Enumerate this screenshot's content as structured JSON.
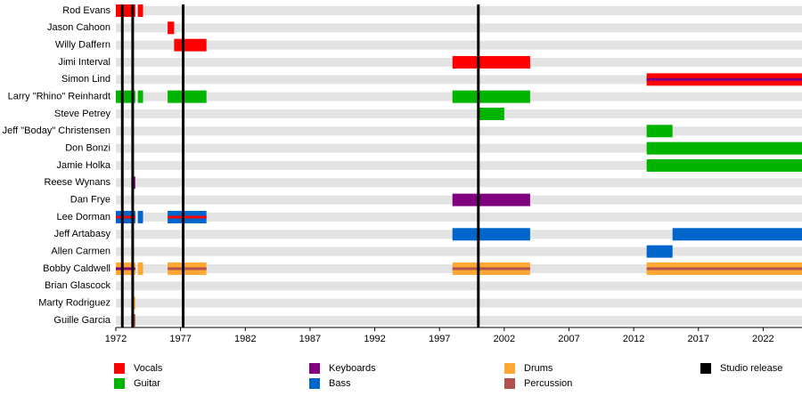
{
  "chart_data": {
    "type": "timeline",
    "categories": [
      "Rod Evans",
      "Jason Cahoon",
      "Willy Daffern",
      "Jimi Interval",
      "Simon Lind",
      "Larry \"Rhino\" Reinhardt",
      "Steve Petrey",
      "Jeff \"Boday\" Christensen",
      "Don Bonzi",
      "Jamie Holka",
      "Reese Wynans",
      "Dan Frye",
      "Lee Dorman",
      "Jeff Artabasy",
      "Allen Carmen",
      "Bobby Caldwell",
      "Brian Glascock",
      "Marty Rodriguez",
      "Guille Garcia"
    ],
    "xlim": [
      1972,
      2025
    ],
    "xticks": [
      1972,
      1977,
      1982,
      1987,
      1992,
      1997,
      2002,
      2007,
      2012,
      2017,
      2022
    ],
    "series": [
      {
        "name": "Vocals",
        "color": "#ff0000",
        "bars": [
          {
            "row": 0,
            "start": 1972,
            "end": 1973.5
          },
          {
            "row": 0,
            "start": 1973.7,
            "end": 1974.1
          },
          {
            "row": 1,
            "start": 1976,
            "end": 1976.5
          },
          {
            "row": 2,
            "start": 1976.5,
            "end": 1979
          },
          {
            "row": 3,
            "start": 1998,
            "end": 2004
          },
          {
            "row": 4,
            "start": 2013,
            "end": 2025
          }
        ],
        "stripes": [
          {
            "row": 12,
            "start": 1972,
            "end": 1973.5
          },
          {
            "row": 12,
            "start": 1976,
            "end": 1979
          }
        ]
      },
      {
        "name": "Guitar",
        "color": "#00b400",
        "bars": [
          {
            "row": 5,
            "start": 1972,
            "end": 1973.5
          },
          {
            "row": 5,
            "start": 1973.7,
            "end": 1974.1
          },
          {
            "row": 5,
            "start": 1976,
            "end": 1979
          },
          {
            "row": 5,
            "start": 1998,
            "end": 2004
          },
          {
            "row": 6,
            "start": 2000,
            "end": 2002
          },
          {
            "row": 7,
            "start": 2013,
            "end": 2015
          },
          {
            "row": 8,
            "start": 2013,
            "end": 2025
          },
          {
            "row": 9,
            "start": 2013,
            "end": 2025
          }
        ],
        "stripes": []
      },
      {
        "name": "Keyboards",
        "color": "#800080",
        "bars": [
          {
            "row": 10,
            "start": 1973.2,
            "end": 1973.5
          },
          {
            "row": 11,
            "start": 1998,
            "end": 2004
          }
        ],
        "stripes": [
          {
            "row": 4,
            "start": 2013,
            "end": 2025
          },
          {
            "row": 15,
            "start": 1972,
            "end": 1973.5
          }
        ]
      },
      {
        "name": "Bass",
        "color": "#0066cc",
        "bars": [
          {
            "row": 12,
            "start": 1972,
            "end": 1973.5
          },
          {
            "row": 12,
            "start": 1973.7,
            "end": 1974.1
          },
          {
            "row": 12,
            "start": 1976,
            "end": 1979
          },
          {
            "row": 13,
            "start": 1998,
            "end": 2004
          },
          {
            "row": 13,
            "start": 2015,
            "end": 2025
          },
          {
            "row": 14,
            "start": 2013,
            "end": 2015
          }
        ],
        "stripes": []
      },
      {
        "name": "Drums",
        "color": "#ffa733",
        "bars": [
          {
            "row": 15,
            "start": 1972,
            "end": 1973.5
          },
          {
            "row": 15,
            "start": 1973.7,
            "end": 1974.1
          },
          {
            "row": 15,
            "start": 1976,
            "end": 1979
          },
          {
            "row": 15,
            "start": 1998,
            "end": 2004
          },
          {
            "row": 15,
            "start": 2013,
            "end": 2025
          },
          {
            "row": 16,
            "start": 1973.2,
            "end": 1973.4
          },
          {
            "row": 17,
            "start": 1973.3,
            "end": 1973.5
          }
        ],
        "stripes": []
      },
      {
        "name": "Percussion",
        "color": "#b25050",
        "bars": [
          {
            "row": 18,
            "start": 1973.2,
            "end": 1973.5
          }
        ],
        "stripes": [
          {
            "row": 15,
            "start": 1976,
            "end": 1979
          },
          {
            "row": 15,
            "start": 1998,
            "end": 2004
          },
          {
            "row": 15,
            "start": 2013,
            "end": 2025
          }
        ]
      }
    ],
    "releases": {
      "name": "Studio release",
      "color": "#000000",
      "values": [
        1972.5,
        1973.3,
        1977.2,
        2000
      ]
    }
  }
}
